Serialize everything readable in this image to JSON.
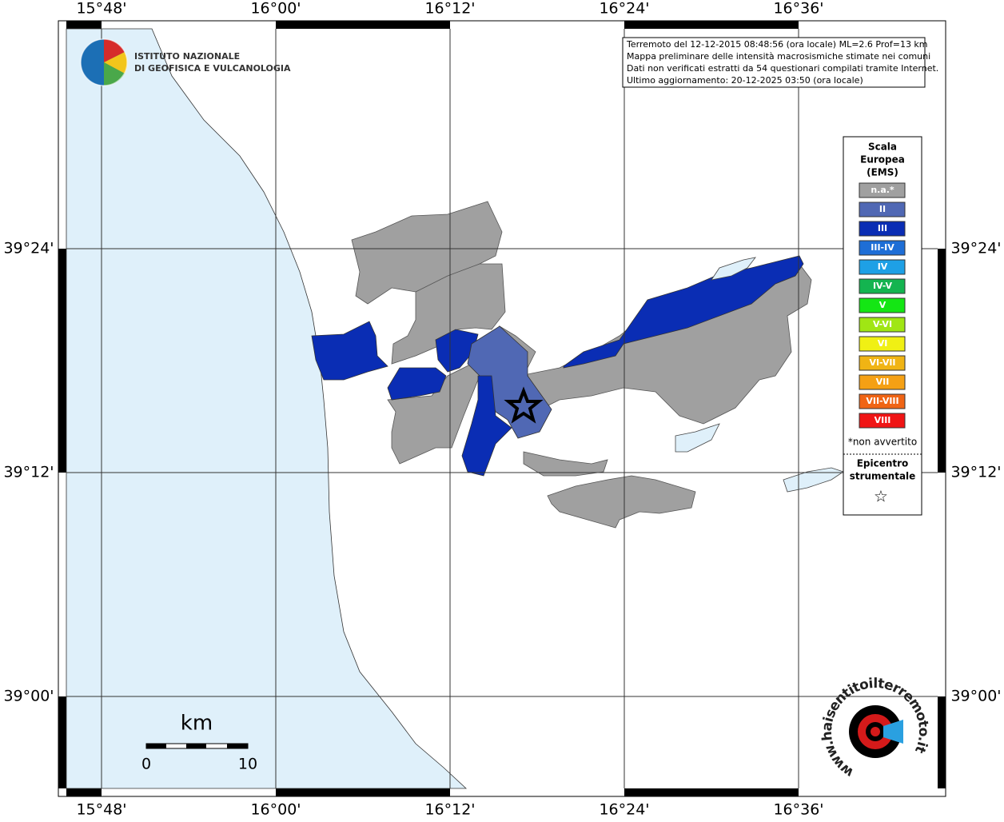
{
  "map": {
    "longitude_labels": [
      "15°48'",
      "16°00'",
      "16°12'",
      "16°24'",
      "16°36'"
    ],
    "latitude_labels": [
      "39°24'",
      "39°12'",
      "39°00'"
    ],
    "info": [
      "Terremoto del 12-12-2015 08:48:56 (ora locale) ML=2.6 Prof=13 km",
      "Mappa preliminare delle intensità macrosismiche stimate nei comuni",
      "Dati non verificati estratti da 54 questionari compilati tramite Internet.",
      "Ultimo aggiornamento: 20-12-2025 03:50 (ora locale)"
    ],
    "institute": [
      "ISTITUTO NAZIONALE",
      "DI GEOFISICA E VULCANOLOGIA"
    ],
    "legend": {
      "title": [
        "Scala",
        "Europea",
        "(EMS)"
      ],
      "items": [
        {
          "label": "n.a.*",
          "color": "#a0a0a0"
        },
        {
          "label": "II",
          "color": "#5068b4"
        },
        {
          "label": "III",
          "color": "#0a2db4"
        },
        {
          "label": "III-IV",
          "color": "#1e6ed6"
        },
        {
          "label": "IV",
          "color": "#1ea0e6"
        },
        {
          "label": "IV-V",
          "color": "#14b450"
        },
        {
          "label": "V",
          "color": "#14e614"
        },
        {
          "label": "V-VI",
          "color": "#a0e614"
        },
        {
          "label": "VI",
          "color": "#f0f014"
        },
        {
          "label": "VI-VII",
          "color": "#f0b414"
        },
        {
          "label": "VII",
          "color": "#f5a014"
        },
        {
          "label": "VII-VIII",
          "color": "#f06414"
        },
        {
          "label": "VIII",
          "color": "#f01414"
        }
      ],
      "note": "*non avvertito",
      "epicenter": [
        "Epicentro",
        "strumentale"
      ],
      "epicenter_symbol": "☆"
    },
    "scale": {
      "unit": "km",
      "labels": [
        "0",
        "10"
      ]
    },
    "logo_text": "www.haisentitoilterremoto.it"
  }
}
